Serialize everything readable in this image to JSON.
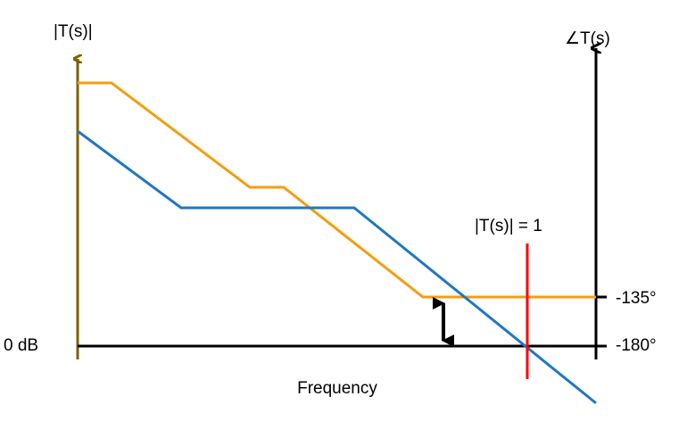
{
  "labels": {
    "magnitude_axis": "|T(s)|",
    "phase_axis": "∠T(s)",
    "zero_db": "0 dB",
    "x_axis": "Frequency",
    "crossover": "|T(s)| = 1",
    "phase_135": "-135°",
    "phase_180": "-180°"
  }
}
